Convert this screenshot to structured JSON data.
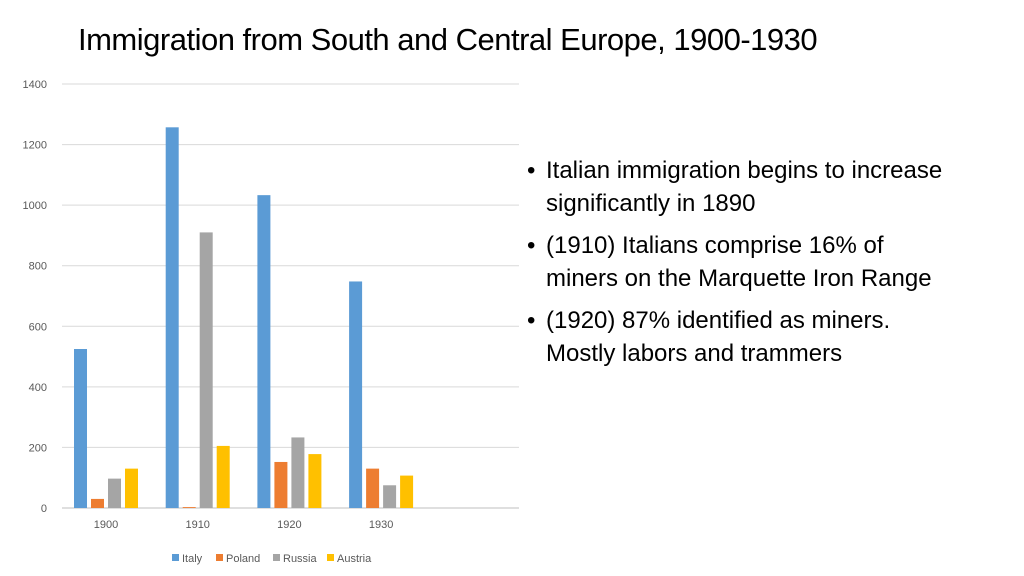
{
  "slide": {
    "title": "Immigration from South and Central Europe, 1900-1930",
    "bullets": [
      "Italian immigration begins to increase significantly in 1890",
      "(1910) Italians comprise 16% of miners on the Marquette Iron Range",
      "(1920) 87% identified as miners. Mostly labors and trammers"
    ]
  },
  "chart_data": {
    "type": "bar",
    "categories": [
      "1900",
      "1910",
      "1920",
      "1930"
    ],
    "series": [
      {
        "name": "Italy",
        "color": "#5B9BD5",
        "values": [
          525,
          1257,
          1033,
          748
        ]
      },
      {
        "name": "Poland",
        "color": "#ED7D31",
        "values": [
          30,
          3,
          152,
          130
        ]
      },
      {
        "name": "Russia",
        "color": "#A5A5A5",
        "values": [
          97,
          910,
          233,
          75
        ]
      },
      {
        "name": "Austria",
        "color": "#FFC000",
        "values": [
          130,
          205,
          178,
          107
        ]
      }
    ],
    "yticks": [
      0,
      200,
      400,
      600,
      800,
      1000,
      1200,
      1400
    ],
    "ylim": [
      0,
      1400
    ],
    "grid": true,
    "legend": "bottom"
  }
}
